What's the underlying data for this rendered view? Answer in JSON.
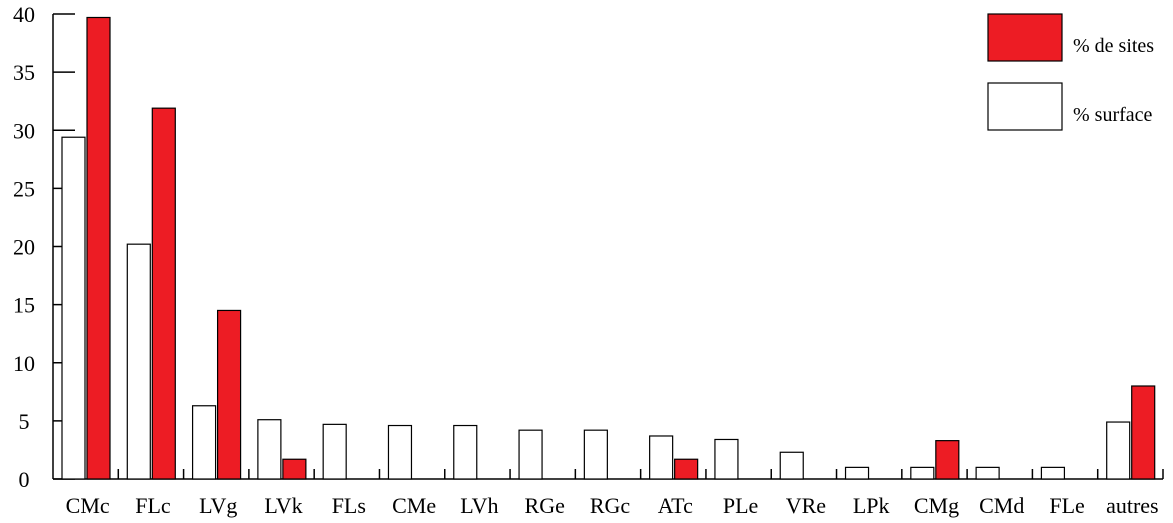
{
  "chart_data": {
    "type": "bar",
    "title": "",
    "xlabel": "",
    "ylabel": "",
    "ylim": [
      0,
      40
    ],
    "yticks": [
      0,
      5,
      10,
      15,
      20,
      25,
      30,
      35,
      40
    ],
    "grid": false,
    "legend_position": "top-right",
    "categories": [
      "CMc",
      "FLc",
      "LVg",
      "LVk",
      "FLs",
      "CMe",
      "LVh",
      "RGe",
      "RGc",
      "ATc",
      "PLe",
      "VRe",
      "LPk",
      "CMg",
      "CMd",
      "FLe",
      "autres"
    ],
    "series": [
      {
        "name": "% surface",
        "color": "#ffffff",
        "values": [
          29.4,
          20.2,
          6.3,
          5.1,
          4.7,
          4.6,
          4.6,
          4.2,
          4.2,
          3.7,
          3.4,
          2.3,
          1.0,
          1.0,
          1.0,
          1.0,
          4.9
        ]
      },
      {
        "name": "% de sites",
        "color": "#ed1c24",
        "values": [
          39.7,
          31.9,
          14.5,
          1.7,
          0,
          0,
          0,
          0,
          0,
          1.7,
          0,
          0,
          0,
          3.3,
          0,
          0,
          8.0
        ]
      }
    ]
  }
}
